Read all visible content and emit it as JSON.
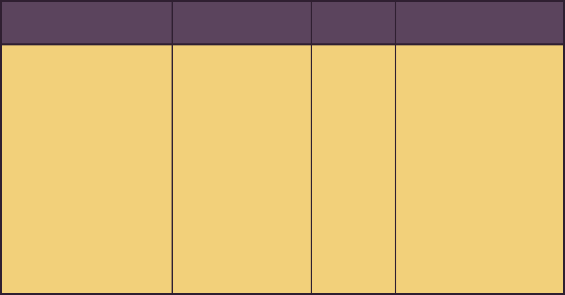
{
  "colors": {
    "border": "#2f1f31",
    "header_fill": "#5b445d",
    "body_fill": "#f2d07a"
  },
  "table": {
    "column_count": 4,
    "headers": [
      "",
      "",
      "",
      ""
    ],
    "rows": [
      [
        "",
        "",
        "",
        ""
      ]
    ]
  }
}
